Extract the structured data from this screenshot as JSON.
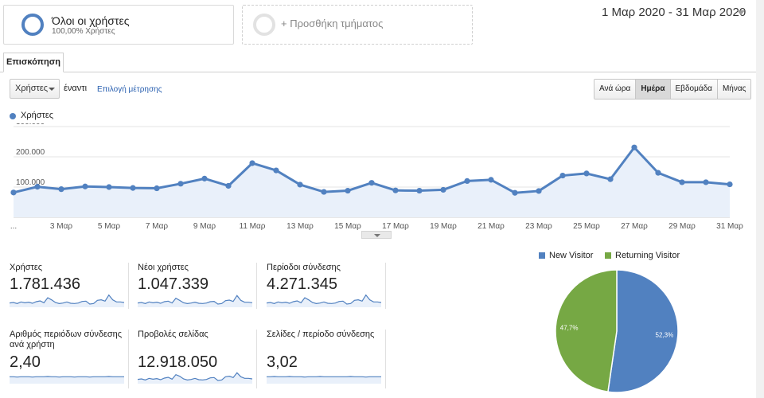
{
  "segments": {
    "all_users": {
      "title": "Όλοι οι χρήστες",
      "subtitle": "100,00% Χρήστες"
    },
    "add_segment": {
      "label": "+ Προσθήκη τμήματος"
    }
  },
  "date_range": "1 Μαρ 2020 - 31 Μαρ 2020",
  "tab_label": "Επισκόπηση",
  "metric_selector": {
    "value": "Χρήστες",
    "vs_label": "έναντι",
    "choose_metric": "Επιλογή μέτρησης"
  },
  "granularity": {
    "options": [
      "Ανά ώρα",
      "Ημέρα",
      "Εβδομάδα",
      "Μήνας"
    ],
    "selected": "Ημέρα"
  },
  "colors": {
    "accent": "#5181c0",
    "returning": "#76a844",
    "link": "#2a60b0"
  },
  "chart_data": {
    "type": "line",
    "legend": "Χρήστες",
    "x_tick_labels": [
      "...",
      "3 Μαρ",
      "5 Μαρ",
      "7 Μαρ",
      "9 Μαρ",
      "11 Μαρ",
      "13 Μαρ",
      "15 Μαρ",
      "17 Μαρ",
      "19 Μαρ",
      "21 Μαρ",
      "23 Μαρ",
      "25 Μαρ",
      "27 Μαρ",
      "29 Μαρ",
      "31 Μαρ"
    ],
    "y_tick_labels": [
      "300.000",
      "200.000",
      "100.000"
    ],
    "ylim": [
      0,
      300000
    ],
    "days": [
      "1 Μαρ",
      "2 Μαρ",
      "3 Μαρ",
      "4 Μαρ",
      "5 Μαρ",
      "6 Μαρ",
      "7 Μαρ",
      "8 Μαρ",
      "9 Μαρ",
      "10 Μαρ",
      "11 Μαρ",
      "12 Μαρ",
      "13 Μαρ",
      "14 Μαρ",
      "15 Μαρ",
      "16 Μαρ",
      "17 Μαρ",
      "18 Μαρ",
      "19 Μαρ",
      "20 Μαρ",
      "21 Μαρ",
      "22 Μαρ",
      "23 Μαρ",
      "24 Μαρ",
      "25 Μαρ",
      "26 Μαρ",
      "27 Μαρ",
      "28 Μαρ",
      "29 Μαρ",
      "30 Μαρ",
      "31 Μαρ"
    ],
    "values": [
      82000,
      101000,
      93000,
      102000,
      100000,
      97000,
      96000,
      111000,
      128000,
      104000,
      179000,
      155000,
      108000,
      84000,
      88000,
      114000,
      89000,
      88000,
      91000,
      120000,
      124000,
      81000,
      87000,
      138000,
      145000,
      126000,
      231000,
      147000,
      116000,
      116000,
      109000
    ],
    "grid": true
  },
  "stats": [
    {
      "label": "Χρήστες",
      "value": "1.781.436",
      "spark": [
        40,
        42,
        38,
        44,
        41,
        43,
        39,
        45,
        48,
        41,
        60,
        52,
        42,
        38,
        40,
        44,
        39,
        38,
        40,
        46,
        47,
        36,
        38,
        50,
        52,
        47,
        70,
        52,
        44,
        44,
        42
      ]
    },
    {
      "label": "Νέοι χρήστες",
      "value": "1.047.339",
      "spark": [
        40,
        42,
        38,
        44,
        41,
        43,
        39,
        45,
        47,
        40,
        58,
        50,
        41,
        38,
        40,
        43,
        39,
        38,
        40,
        45,
        46,
        36,
        38,
        49,
        51,
        46,
        68,
        50,
        43,
        43,
        41
      ]
    },
    {
      "label": "Περίοδοι σύνδεσης",
      "value": "4.271.345",
      "spark": [
        40,
        42,
        38,
        44,
        41,
        43,
        39,
        45,
        48,
        41,
        60,
        52,
        42,
        38,
        40,
        44,
        39,
        38,
        40,
        46,
        47,
        36,
        38,
        50,
        52,
        47,
        70,
        52,
        44,
        44,
        42
      ]
    },
    {
      "label": "Αριθμός περιόδων σύνδεσης ανά χρήστη",
      "value": "2,40",
      "spark": [
        50,
        50,
        49,
        50,
        50,
        50,
        49,
        50,
        50,
        50,
        51,
        50,
        50,
        49,
        50,
        50,
        50,
        49,
        50,
        50,
        50,
        49,
        50,
        50,
        50,
        50,
        51,
        50,
        50,
        50,
        50
      ]
    },
    {
      "label": "Προβολές σελίδας",
      "value": "12.918.050",
      "spark": [
        40,
        42,
        38,
        44,
        41,
        43,
        39,
        45,
        48,
        41,
        58,
        52,
        42,
        38,
        40,
        44,
        39,
        38,
        40,
        46,
        47,
        36,
        38,
        50,
        52,
        47,
        65,
        50,
        44,
        44,
        42
      ]
    },
    {
      "label": "Σελίδες / περίοδο σύνδεσης",
      "value": "3,02",
      "spark": [
        50,
        50,
        51,
        50,
        50,
        50,
        51,
        50,
        50,
        50,
        49,
        50,
        50,
        50,
        51,
        50,
        50,
        50,
        50,
        50,
        50,
        50,
        51,
        50,
        50,
        50,
        49,
        50,
        50,
        50,
        50
      ]
    }
  ],
  "pie": {
    "legend": [
      {
        "label": "New Visitor",
        "color": "#5181c0"
      },
      {
        "label": "Returning Visitor",
        "color": "#76a844"
      }
    ],
    "slices": [
      {
        "label": "New Visitor",
        "percent": 52.3,
        "text": "52,3%",
        "color": "#5181c0"
      },
      {
        "label": "Returning Visitor",
        "percent": 47.7,
        "text": "47,7%",
        "color": "#76a844"
      }
    ]
  }
}
